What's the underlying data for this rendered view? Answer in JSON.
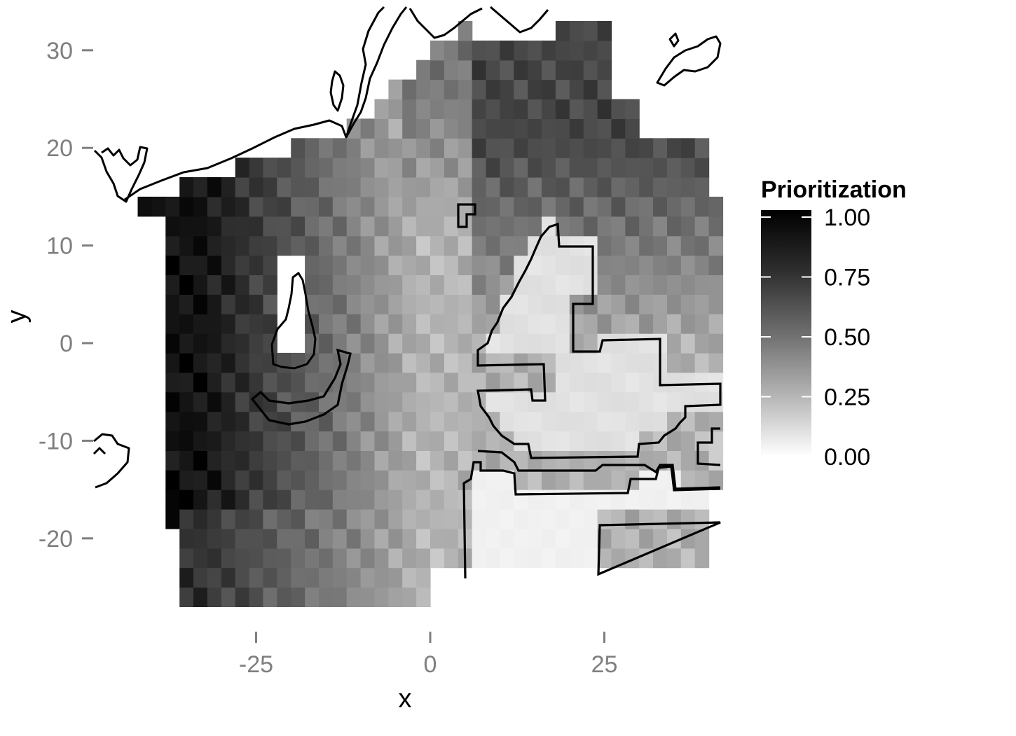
{
  "chart_data": {
    "type": "heatmap",
    "title": "",
    "xlabel": "x",
    "ylabel": "y",
    "xlim": [
      -50,
      41
    ],
    "ylim": [
      -27,
      34
    ],
    "x_ticks": [
      -25,
      0,
      25
    ],
    "x_tick_labels": [
      "-25",
      "0",
      "25"
    ],
    "y_ticks": [
      30,
      20,
      10,
      0,
      -10,
      -20
    ],
    "y_tick_labels": [
      "30",
      "20",
      "10",
      "0",
      "-10",
      "-20"
    ],
    "grid": false,
    "cell_size": 2,
    "legend": {
      "title": "Prioritization",
      "placement": "right",
      "type": "continuous gradient",
      "ticks": [
        1.0,
        0.75,
        0.5,
        0.25,
        0.0
      ],
      "tick_labels": [
        "1.00",
        "0.75",
        "0.50",
        "0.25",
        "0.00"
      ],
      "low_color": "#ffffff",
      "high_color": "#000000"
    },
    "value_field_description": "Prioritization score, 0 (white) to 1 (black), per grid cell",
    "approximate_values": {
      "northwest_coastal_block": 0.93,
      "western_edge_column": 0.97,
      "southwest_corner_cells": 0.98,
      "central_band_x_0": 0.3,
      "northeast_block": 0.72,
      "eastern_outlined_zones": 0.08,
      "south_band_y_-25": 0.35
    },
    "outlined_zones": 5
  },
  "colors": {
    "tick": "#7f7f7f",
    "outline": "#000000",
    "background": "#ffffff"
  }
}
